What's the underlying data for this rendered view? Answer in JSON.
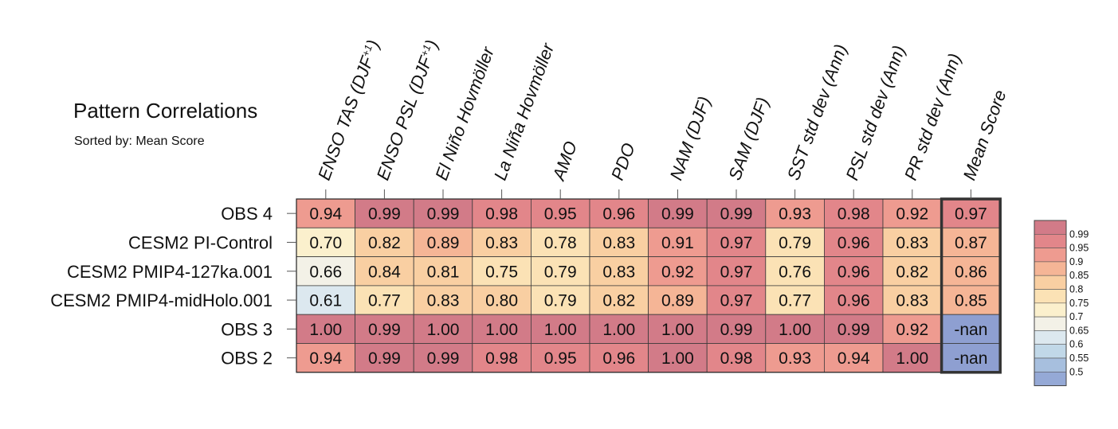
{
  "chart_data": {
    "type": "heatmap",
    "title": "Pattern Correlations",
    "subtitle": "Sorted by: Mean Score",
    "columns": [
      {
        "pre": "ENSO TAS (DJF",
        "sup": "+1",
        "post": ")"
      },
      {
        "pre": "ENSO PSL (DJF",
        "sup": "+1",
        "post": ")"
      },
      {
        "pre": "El Niño Hovmöller",
        "sup": "",
        "post": ""
      },
      {
        "pre": "La Niña Hovmöller",
        "sup": "",
        "post": ""
      },
      {
        "pre": "AMO",
        "sup": "",
        "post": ""
      },
      {
        "pre": "PDO",
        "sup": "",
        "post": ""
      },
      {
        "pre": "NAM (DJF)",
        "sup": "",
        "post": ""
      },
      {
        "pre": "SAM (DJF)",
        "sup": "",
        "post": ""
      },
      {
        "pre": "SST std dev (Ann)",
        "sup": "",
        "post": ""
      },
      {
        "pre": "PSL std dev (Ann)",
        "sup": "",
        "post": ""
      },
      {
        "pre": "PR std dev (Ann)",
        "sup": "",
        "post": ""
      },
      {
        "pre": "Mean Score",
        "sup": "",
        "post": ""
      }
    ],
    "rows": [
      "OBS 4",
      "CESM2 PI-Control",
      "CESM2 PMIP4-127ka.001",
      "CESM2 PMIP4-midHolo.001",
      "OBS 3",
      "OBS 2"
    ],
    "cells": [
      [
        "0.94",
        "0.99",
        "0.99",
        "0.98",
        "0.95",
        "0.96",
        "0.99",
        "0.99",
        "0.93",
        "0.98",
        "0.92",
        "0.97"
      ],
      [
        "0.70",
        "0.82",
        "0.89",
        "0.83",
        "0.78",
        "0.83",
        "0.91",
        "0.97",
        "0.79",
        "0.96",
        "0.83",
        "0.87"
      ],
      [
        "0.66",
        "0.84",
        "0.81",
        "0.75",
        "0.79",
        "0.83",
        "0.92",
        "0.97",
        "0.76",
        "0.96",
        "0.82",
        "0.86"
      ],
      [
        "0.61",
        "0.77",
        "0.83",
        "0.80",
        "0.79",
        "0.82",
        "0.89",
        "0.97",
        "0.77",
        "0.96",
        "0.83",
        "0.85"
      ],
      [
        "1.00",
        "0.99",
        "1.00",
        "1.00",
        "1.00",
        "1.00",
        "1.00",
        "0.99",
        "1.00",
        "0.99",
        "0.92",
        "-nan"
      ],
      [
        "0.94",
        "0.99",
        "0.99",
        "0.98",
        "0.95",
        "0.96",
        "1.00",
        "0.98",
        "0.93",
        "0.94",
        "1.00",
        "-nan"
      ]
    ],
    "colorbar": {
      "labels": [
        "0.99",
        "0.95",
        "0.9",
        "0.85",
        "0.8",
        "0.75",
        "0.7",
        "0.65",
        "0.6",
        "0.55",
        "0.5"
      ],
      "colors": [
        "#d27b88",
        "#e2868a",
        "#ee9b90",
        "#f5b596",
        "#f9cfa2",
        "#fbe2b5",
        "#fbf0cd",
        "#f3f1e7",
        "#dce8ef",
        "#c1d8e8",
        "#a7bfde",
        "#95a9d6"
      ],
      "nan_color": "#8e9fd1"
    }
  }
}
